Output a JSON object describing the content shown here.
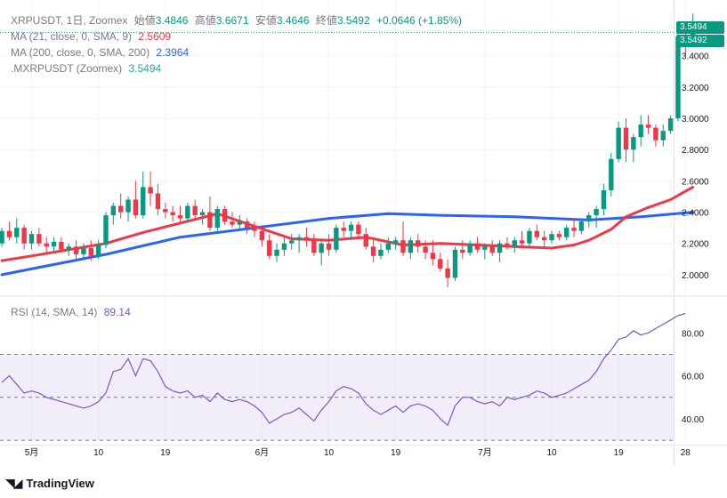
{
  "legend": {
    "symbol": "XRPUSDT, 1日, Zoomex",
    "open_label": "始値",
    "open": "3.4846",
    "high_label": "高値",
    "high": "3.6671",
    "low_label": "安値",
    "low": "3.4646",
    "close_label": "終値",
    "close": "3.5492",
    "change": "+0.0646 (+1.85%)",
    "ma21_label": "MA (21, close, 0, SMA, 9)",
    "ma21_value": "2.5609",
    "ma200_label": "MA (200, close, 0, SMA, 200)",
    "ma200_value": "2.3964",
    "index_label": ".MXRPUSDT (Zoomex)",
    "index_value": "3.5494",
    "rsi_label": "RSI (14, SMA, 14)",
    "rsi_value": "89.14"
  },
  "price_labels": {
    "index": "3.5494",
    "last": "3.5492"
  },
  "brand": "TradingView",
  "colors": {
    "up": "#089981",
    "down": "#f23645",
    "ma21": "#f23645",
    "ma200": "#2962ff",
    "rsi": "#7e57c2",
    "index": "#22ab94"
  },
  "chart_data": [
    {
      "type": "candlestick",
      "title": "XRPUSDT, 1日, Zoomex",
      "y_ticks": [
        "2.0000",
        "2.2000",
        "2.4000",
        "2.6000",
        "2.8000",
        "3.0000",
        "3.2000",
        "3.4000"
      ],
      "ylim": [
        1.88,
        3.7
      ],
      "x_ticks": [
        {
          "label": "5月",
          "day": 0
        },
        {
          "label": "10",
          "day": 9
        },
        {
          "label": "19",
          "day": 18
        },
        {
          "label": "6月",
          "day": 31
        },
        {
          "label": "10",
          "day": 40
        },
        {
          "label": "19",
          "day": 49
        },
        {
          "label": "7月",
          "day": 61
        },
        {
          "label": "10",
          "day": 70
        },
        {
          "label": "19",
          "day": 79
        },
        {
          "label": "28",
          "day": 88
        }
      ],
      "first_day_index": -4,
      "candles": [
        [
          2.2,
          2.3,
          2.18,
          2.28
        ],
        [
          2.28,
          2.34,
          2.22,
          2.24
        ],
        [
          2.24,
          2.36,
          2.2,
          2.3
        ],
        [
          2.3,
          2.32,
          2.16,
          2.2
        ],
        [
          2.2,
          2.28,
          2.16,
          2.26
        ],
        [
          2.26,
          2.3,
          2.18,
          2.2
        ],
        [
          2.2,
          2.24,
          2.14,
          2.18
        ],
        [
          2.18,
          2.24,
          2.15,
          2.21
        ],
        [
          2.21,
          2.24,
          2.14,
          2.16
        ],
        [
          2.16,
          2.2,
          2.12,
          2.18
        ],
        [
          2.18,
          2.22,
          2.1,
          2.13
        ],
        [
          2.13,
          2.2,
          2.11,
          2.17
        ],
        [
          2.17,
          2.22,
          2.09,
          2.12
        ],
        [
          2.12,
          2.22,
          2.1,
          2.19
        ],
        [
          2.19,
          2.4,
          2.17,
          2.38
        ],
        [
          2.38,
          2.46,
          2.32,
          2.44
        ],
        [
          2.44,
          2.52,
          2.36,
          2.4
        ],
        [
          2.4,
          2.5,
          2.34,
          2.48
        ],
        [
          2.48,
          2.6,
          2.36,
          2.38
        ],
        [
          2.38,
          2.66,
          2.36,
          2.56
        ],
        [
          2.56,
          2.66,
          2.44,
          2.52
        ],
        [
          2.52,
          2.58,
          2.38,
          2.42
        ],
        [
          2.42,
          2.46,
          2.36,
          2.4
        ],
        [
          2.4,
          2.44,
          2.34,
          2.38
        ],
        [
          2.38,
          2.44,
          2.32,
          2.36
        ],
        [
          2.36,
          2.46,
          2.34,
          2.44
        ],
        [
          2.44,
          2.48,
          2.36,
          2.38
        ],
        [
          2.38,
          2.42,
          2.32,
          2.4
        ],
        [
          2.4,
          2.5,
          2.28,
          2.3
        ],
        [
          2.3,
          2.44,
          2.28,
          2.42
        ],
        [
          2.42,
          2.44,
          2.32,
          2.34
        ],
        [
          2.34,
          2.4,
          2.3,
          2.32
        ],
        [
          2.32,
          2.38,
          2.28,
          2.34
        ],
        [
          2.34,
          2.36,
          2.26,
          2.3
        ],
        [
          2.3,
          2.34,
          2.24,
          2.28
        ],
        [
          2.28,
          2.3,
          2.18,
          2.22
        ],
        [
          2.22,
          2.26,
          2.1,
          2.12
        ],
        [
          2.12,
          2.2,
          2.08,
          2.16
        ],
        [
          2.16,
          2.24,
          2.12,
          2.2
        ],
        [
          2.2,
          2.26,
          2.16,
          2.22
        ],
        [
          2.22,
          2.26,
          2.14,
          2.24
        ],
        [
          2.24,
          2.3,
          2.18,
          2.22
        ],
        [
          2.22,
          2.26,
          2.12,
          2.14
        ],
        [
          2.14,
          2.22,
          2.06,
          2.2
        ],
        [
          2.2,
          2.26,
          2.12,
          2.16
        ],
        [
          2.16,
          2.32,
          2.14,
          2.3
        ],
        [
          2.3,
          2.34,
          2.24,
          2.28
        ],
        [
          2.28,
          2.34,
          2.22,
          2.32
        ],
        [
          2.32,
          2.34,
          2.24,
          2.26
        ],
        [
          2.26,
          2.3,
          2.16,
          2.18
        ],
        [
          2.18,
          2.22,
          2.08,
          2.12
        ],
        [
          2.12,
          2.2,
          2.1,
          2.16
        ],
        [
          2.16,
          2.24,
          2.14,
          2.2
        ],
        [
          2.2,
          2.24,
          2.16,
          2.22
        ],
        [
          2.22,
          2.34,
          2.12,
          2.14
        ],
        [
          2.14,
          2.24,
          2.1,
          2.22
        ],
        [
          2.22,
          2.26,
          2.14,
          2.18
        ],
        [
          2.18,
          2.22,
          2.1,
          2.14
        ],
        [
          2.14,
          2.22,
          2.06,
          2.1
        ],
        [
          2.1,
          2.14,
          2.02,
          2.04
        ],
        [
          2.04,
          2.1,
          1.92,
          1.98
        ],
        [
          1.98,
          2.18,
          1.96,
          2.16
        ],
        [
          2.16,
          2.22,
          2.1,
          2.14
        ],
        [
          2.14,
          2.22,
          2.12,
          2.2
        ],
        [
          2.2,
          2.24,
          2.14,
          2.16
        ],
        [
          2.16,
          2.2,
          2.1,
          2.18
        ],
        [
          2.18,
          2.22,
          2.12,
          2.14
        ],
        [
          2.14,
          2.22,
          2.08,
          2.2
        ],
        [
          2.2,
          2.24,
          2.16,
          2.18
        ],
        [
          2.18,
          2.24,
          2.14,
          2.22
        ],
        [
          2.22,
          2.28,
          2.18,
          2.2
        ],
        [
          2.2,
          2.3,
          2.18,
          2.28
        ],
        [
          2.28,
          2.32,
          2.22,
          2.24
        ],
        [
          2.24,
          2.28,
          2.18,
          2.22
        ],
        [
          2.22,
          2.28,
          2.2,
          2.26
        ],
        [
          2.26,
          2.28,
          2.22,
          2.24
        ],
        [
          2.24,
          2.32,
          2.22,
          2.3
        ],
        [
          2.3,
          2.36,
          2.24,
          2.28
        ],
        [
          2.28,
          2.36,
          2.26,
          2.34
        ],
        [
          2.34,
          2.4,
          2.3,
          2.38
        ],
        [
          2.38,
          2.44,
          2.3,
          2.42
        ],
        [
          2.42,
          2.58,
          2.38,
          2.54
        ],
        [
          2.54,
          2.78,
          2.5,
          2.74
        ],
        [
          2.74,
          2.98,
          2.72,
          2.94
        ],
        [
          2.94,
          3.0,
          2.72,
          2.8
        ],
        [
          2.8,
          2.9,
          2.72,
          2.88
        ],
        [
          2.88,
          3.02,
          2.82,
          2.96
        ],
        [
          2.96,
          3.02,
          2.9,
          2.94
        ],
        [
          2.94,
          2.96,
          2.82,
          2.86
        ],
        [
          2.86,
          2.96,
          2.82,
          2.92
        ],
        [
          2.92,
          3.02,
          2.9,
          3.0
        ],
        [
          3.0,
          3.56,
          2.98,
          3.52
        ],
        [
          3.52,
          3.58,
          3.4,
          3.48
        ],
        [
          3.48,
          3.67,
          3.46,
          3.55
        ]
      ],
      "series": [
        {
          "name": "MA (21, close, 0, SMA, 9)",
          "color": "#f23645",
          "x": [
            -4,
            0,
            5,
            10,
            15,
            20,
            25,
            30,
            35,
            40,
            45,
            50,
            55,
            60,
            65,
            70,
            73,
            75,
            78,
            80,
            83,
            86,
            89
          ],
          "values": [
            2.09,
            2.12,
            2.16,
            2.2,
            2.27,
            2.33,
            2.39,
            2.31,
            2.23,
            2.22,
            2.24,
            2.19,
            2.2,
            2.19,
            2.18,
            2.17,
            2.19,
            2.22,
            2.29,
            2.37,
            2.43,
            2.48,
            2.56
          ]
        },
        {
          "name": "MA (200, close, 0, SMA, 200)",
          "color": "#2962ff",
          "x": [
            -4,
            10,
            20,
            30,
            40,
            48,
            55,
            65,
            75,
            82,
            89
          ],
          "values": [
            2.0,
            2.13,
            2.24,
            2.3,
            2.36,
            2.39,
            2.38,
            2.37,
            2.35,
            2.37,
            2.4
          ]
        }
      ]
    },
    {
      "type": "line",
      "title": "RSI (14, SMA, 14)",
      "y_ticks": [
        "40.00",
        "60.00",
        "80.00"
      ],
      "ylim": [
        28,
        95
      ],
      "bands": [
        30,
        50,
        70
      ],
      "series": [
        {
          "name": "RSI (14, SMA, 14)",
          "color": "#7e57c2",
          "x_start": -4,
          "values": [
            57,
            60,
            56,
            52,
            53,
            52,
            50,
            49,
            48,
            47,
            46,
            45,
            46,
            48,
            52,
            62,
            63,
            68,
            60,
            68,
            67,
            62,
            55,
            53,
            52,
            53,
            50,
            51,
            48,
            52,
            49,
            48,
            49,
            48,
            46,
            43,
            38,
            40,
            42,
            43,
            45,
            42,
            39,
            44,
            48,
            53,
            55,
            54,
            52,
            47,
            44,
            42,
            44,
            46,
            43,
            46,
            47,
            46,
            44,
            40,
            37,
            46,
            50,
            50,
            48,
            47,
            48,
            46,
            50,
            49,
            50,
            51,
            53,
            52,
            50,
            51,
            52,
            54,
            56,
            58,
            62,
            68,
            72,
            77,
            78,
            81,
            79,
            80,
            82,
            84,
            86,
            88,
            89
          ]
        }
      ]
    }
  ]
}
